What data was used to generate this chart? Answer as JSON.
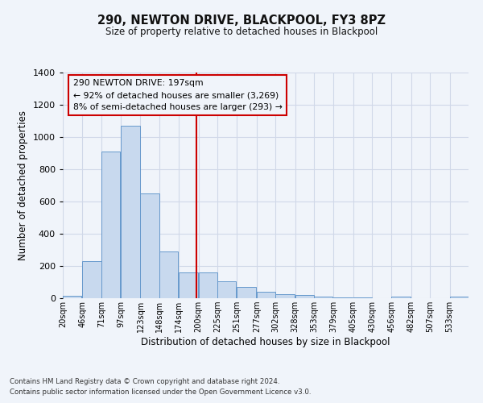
{
  "title": "290, NEWTON DRIVE, BLACKPOOL, FY3 8PZ",
  "subtitle": "Size of property relative to detached houses in Blackpool",
  "xlabel": "Distribution of detached houses by size in Blackpool",
  "ylabel": "Number of detached properties",
  "bar_labels": [
    "20sqm",
    "46sqm",
    "71sqm",
    "97sqm",
    "123sqm",
    "148sqm",
    "174sqm",
    "200sqm",
    "225sqm",
    "251sqm",
    "277sqm",
    "302sqm",
    "328sqm",
    "353sqm",
    "379sqm",
    "405sqm",
    "430sqm",
    "456sqm",
    "482sqm",
    "507sqm",
    "533sqm"
  ],
  "bar_values": [
    15,
    228,
    910,
    1070,
    650,
    290,
    160,
    160,
    107,
    70,
    40,
    27,
    20,
    10,
    5,
    5,
    2,
    8,
    2,
    2,
    8
  ],
  "bar_color": "#c8d9ee",
  "bar_edge_color": "#6699cc",
  "ylim": [
    0,
    1400
  ],
  "yticks": [
    0,
    200,
    400,
    600,
    800,
    1000,
    1200,
    1400
  ],
  "vline_x": 197,
  "vline_color": "#cc0000",
  "annotation_title": "290 NEWTON DRIVE: 197sqm",
  "annotation_line1": "← 92% of detached houses are smaller (3,269)",
  "annotation_line2": "8% of semi-detached houses are larger (293) →",
  "annotation_box_color": "#cc0000",
  "footnote1": "Contains HM Land Registry data © Crown copyright and database right 2024.",
  "footnote2": "Contains public sector information licensed under the Open Government Licence v3.0.",
  "bg_color": "#f0f4fa",
  "grid_color": "#d0d8e8"
}
